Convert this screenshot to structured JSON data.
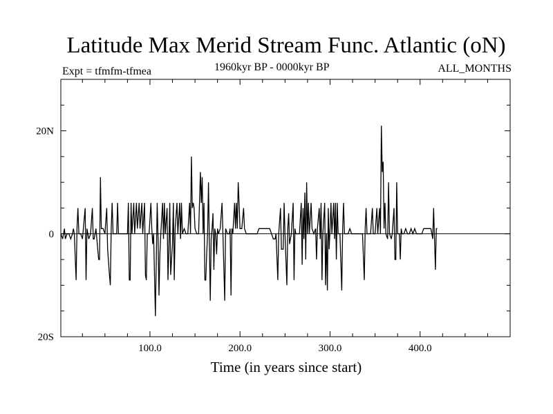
{
  "chart_data": {
    "type": "line",
    "title": "Latitude Max Merid Stream Func. Atlantic (oN)",
    "subtitle_left": "Expt = tfmfm-tfmea",
    "subtitle_center": "1960kyr BP - 0000kyr BP",
    "subtitle_right": "ALL_MONTHS",
    "xlabel": "Time (in years since start)",
    "ylabel": "",
    "xlim": [
      1,
      500
    ],
    "ylim": [
      -20,
      30
    ],
    "x_ticks": [
      100,
      200,
      300,
      400
    ],
    "x_tick_labels": [
      "100.0",
      "200.0",
      "300.0",
      "400.0"
    ],
    "y_ticks": [
      -20,
      0,
      20
    ],
    "y_tick_labels": [
      "20S",
      "0",
      "20N"
    ],
    "grid": false,
    "zero_line": true,
    "line_color": "#000000",
    "series": [
      {
        "values": [
          [
            1,
            0
          ],
          [
            3,
            -1
          ],
          [
            5,
            1
          ],
          [
            6,
            -1
          ],
          [
            8,
            0
          ],
          [
            10,
            0
          ],
          [
            12,
            -1
          ],
          [
            14,
            0
          ],
          [
            15,
            1
          ],
          [
            16,
            0
          ],
          [
            18,
            -9
          ],
          [
            19,
            1
          ],
          [
            20,
            5
          ],
          [
            21,
            0
          ],
          [
            23,
            0
          ],
          [
            25,
            -1
          ],
          [
            26,
            1
          ],
          [
            28,
            5
          ],
          [
            29,
            -9
          ],
          [
            30,
            1
          ],
          [
            32,
            -1
          ],
          [
            34,
            0
          ],
          [
            36,
            5
          ],
          [
            37,
            -1
          ],
          [
            38,
            -1
          ],
          [
            40,
            1
          ],
          [
            41,
            -1
          ],
          [
            43,
            -5
          ],
          [
            44,
            -5
          ],
          [
            45,
            11
          ],
          [
            46,
            1
          ],
          [
            48,
            1
          ],
          [
            50,
            0
          ],
          [
            52,
            5
          ],
          [
            53,
            -3
          ],
          [
            55,
            -8
          ],
          [
            56,
            -10
          ],
          [
            57,
            1
          ],
          [
            58,
            6
          ],
          [
            59,
            0
          ],
          [
            61,
            0
          ],
          [
            63,
            0
          ],
          [
            64,
            6
          ],
          [
            65,
            0
          ],
          [
            67,
            0
          ],
          [
            69,
            0
          ],
          [
            71,
            0
          ],
          [
            73,
            0
          ],
          [
            75,
            0
          ],
          [
            76,
            6
          ],
          [
            77,
            -9
          ],
          [
            78,
            -9
          ],
          [
            79,
            6
          ],
          [
            80,
            0
          ],
          [
            82,
            6
          ],
          [
            83,
            0
          ],
          [
            85,
            6
          ],
          [
            86,
            1
          ],
          [
            88,
            6
          ],
          [
            89,
            1
          ],
          [
            91,
            6
          ],
          [
            92,
            0
          ],
          [
            94,
            6
          ],
          [
            95,
            -8
          ],
          [
            96,
            -9
          ],
          [
            97,
            0
          ],
          [
            99,
            0
          ],
          [
            101,
            6
          ],
          [
            102,
            1
          ],
          [
            103,
            -2
          ],
          [
            104,
            0
          ],
          [
            106,
            -16
          ],
          [
            107,
            -5
          ],
          [
            108,
            6
          ],
          [
            109,
            -1
          ],
          [
            110,
            -12
          ],
          [
            111,
            -4
          ],
          [
            112,
            0
          ],
          [
            114,
            6
          ],
          [
            115,
            -1
          ],
          [
            116,
            6
          ],
          [
            117,
            0
          ],
          [
            119,
            5
          ],
          [
            120,
            -9
          ],
          [
            121,
            -3
          ],
          [
            122,
            6
          ],
          [
            123,
            -8
          ],
          [
            124,
            -5
          ],
          [
            125,
            -2
          ],
          [
            126,
            6
          ],
          [
            127,
            -9
          ],
          [
            128,
            1
          ],
          [
            130,
            6
          ],
          [
            131,
            0
          ],
          [
            133,
            6
          ],
          [
            134,
            -1
          ],
          [
            135,
            6
          ],
          [
            136,
            0
          ],
          [
            138,
            1
          ],
          [
            140,
            0
          ],
          [
            142,
            0
          ],
          [
            144,
            6
          ],
          [
            145,
            0
          ],
          [
            146,
            15
          ],
          [
            147,
            5
          ],
          [
            148,
            6
          ],
          [
            149,
            5
          ],
          [
            150,
            1
          ],
          [
            152,
            0
          ],
          [
            154,
            0
          ],
          [
            156,
            12
          ],
          [
            157,
            6
          ],
          [
            158,
            11
          ],
          [
            159,
            0
          ],
          [
            160,
            6
          ],
          [
            161,
            -9
          ],
          [
            162,
            -9
          ],
          [
            163,
            -4
          ],
          [
            164,
            0
          ],
          [
            165,
            10
          ],
          [
            166,
            -2
          ],
          [
            167,
            -13
          ],
          [
            168,
            -1
          ],
          [
            169,
            1
          ],
          [
            170,
            4
          ],
          [
            171,
            -7
          ],
          [
            172,
            1
          ],
          [
            173,
            0
          ],
          [
            174,
            -4
          ],
          [
            175,
            1
          ],
          [
            176,
            0
          ],
          [
            178,
            1
          ],
          [
            180,
            6
          ],
          [
            181,
            0
          ],
          [
            183,
            -13
          ],
          [
            184,
            1
          ],
          [
            186,
            0
          ],
          [
            188,
            0
          ],
          [
            189,
            1
          ],
          [
            190,
            -12
          ],
          [
            191,
            1
          ],
          [
            192,
            0
          ],
          [
            194,
            6
          ],
          [
            195,
            1
          ],
          [
            196,
            6
          ],
          [
            197,
            1
          ],
          [
            198,
            10
          ],
          [
            199,
            6
          ],
          [
            200,
            1
          ],
          [
            202,
            1
          ],
          [
            204,
            5
          ],
          [
            205,
            1
          ],
          [
            207,
            0
          ],
          [
            209,
            0
          ],
          [
            211,
            0
          ],
          [
            213,
            0
          ],
          [
            215,
            0
          ],
          [
            217,
            0
          ],
          [
            219,
            0
          ],
          [
            221,
            1
          ],
          [
            223,
            1
          ],
          [
            225,
            1
          ],
          [
            227,
            1
          ],
          [
            229,
            1
          ],
          [
            231,
            1
          ],
          [
            233,
            1
          ],
          [
            235,
            0
          ],
          [
            237,
            -1
          ],
          [
            239,
            -1
          ],
          [
            240,
            0
          ],
          [
            242,
            -9
          ],
          [
            243,
            0
          ],
          [
            245,
            5
          ],
          [
            246,
            -3
          ],
          [
            248,
            -3
          ],
          [
            249,
            6
          ],
          [
            250,
            0
          ],
          [
            252,
            -10
          ],
          [
            253,
            1
          ],
          [
            254,
            4
          ],
          [
            255,
            -2
          ],
          [
            256,
            -1
          ],
          [
            257,
            0
          ],
          [
            259,
            6
          ],
          [
            260,
            -9
          ],
          [
            261,
            1
          ],
          [
            262,
            0
          ],
          [
            264,
            0
          ],
          [
            266,
            0
          ],
          [
            268,
            6
          ],
          [
            269,
            -6
          ],
          [
            270,
            5
          ],
          [
            271,
            -1
          ],
          [
            272,
            8
          ],
          [
            273,
            -5
          ],
          [
            274,
            10
          ],
          [
            275,
            0
          ],
          [
            276,
            6
          ],
          [
            277,
            0
          ],
          [
            279,
            6
          ],
          [
            280,
            1
          ],
          [
            282,
            0
          ],
          [
            284,
            1
          ],
          [
            285,
            -5
          ],
          [
            286,
            1
          ],
          [
            288,
            5
          ],
          [
            289,
            -1
          ],
          [
            290,
            6
          ],
          [
            291,
            -9
          ],
          [
            292,
            0
          ],
          [
            294,
            6
          ],
          [
            295,
            -10
          ],
          [
            296,
            0
          ],
          [
            297,
            -11
          ],
          [
            298,
            5
          ],
          [
            299,
            -3
          ],
          [
            300,
            1
          ],
          [
            301,
            6
          ],
          [
            302,
            0
          ],
          [
            304,
            6
          ],
          [
            305,
            -1
          ],
          [
            306,
            6
          ],
          [
            307,
            -5
          ],
          [
            308,
            6
          ],
          [
            309,
            0
          ],
          [
            311,
            0
          ],
          [
            313,
            -11
          ],
          [
            314,
            1
          ],
          [
            315,
            6
          ],
          [
            316,
            0
          ],
          [
            318,
            0
          ],
          [
            320,
            0
          ],
          [
            322,
            1
          ],
          [
            324,
            0
          ],
          [
            326,
            0
          ],
          [
            328,
            0
          ],
          [
            330,
            0
          ],
          [
            332,
            0
          ],
          [
            334,
            0
          ],
          [
            336,
            0
          ],
          [
            338,
            -9
          ],
          [
            339,
            1
          ],
          [
            340,
            5
          ],
          [
            341,
            0
          ],
          [
            343,
            0
          ],
          [
            345,
            0
          ],
          [
            347,
            5
          ],
          [
            348,
            0
          ],
          [
            350,
            0
          ],
          [
            352,
            5
          ],
          [
            353,
            0
          ],
          [
            355,
            5
          ],
          [
            356,
            0
          ],
          [
            357,
            21
          ],
          [
            358,
            12
          ],
          [
            359,
            14
          ],
          [
            360,
            1
          ],
          [
            361,
            6
          ],
          [
            362,
            0
          ],
          [
            364,
            -1
          ],
          [
            365,
            10
          ],
          [
            366,
            0
          ],
          [
            368,
            -1
          ],
          [
            369,
            0
          ],
          [
            371,
            5
          ],
          [
            372,
            -5
          ],
          [
            373,
            -5
          ],
          [
            374,
            10
          ],
          [
            375,
            0
          ],
          [
            377,
            0
          ],
          [
            378,
            -5
          ],
          [
            379,
            1
          ],
          [
            380,
            0
          ],
          [
            382,
            0
          ],
          [
            384,
            1
          ],
          [
            386,
            0
          ],
          [
            388,
            0
          ],
          [
            390,
            1
          ],
          [
            392,
            0
          ],
          [
            394,
            1
          ],
          [
            396,
            0
          ],
          [
            398,
            0
          ],
          [
            400,
            0
          ],
          [
            402,
            0
          ],
          [
            404,
            1
          ],
          [
            406,
            1
          ],
          [
            408,
            1
          ],
          [
            410,
            1
          ],
          [
            412,
            1
          ],
          [
            414,
            -1
          ],
          [
            415,
            5
          ],
          [
            416,
            -1
          ],
          [
            417,
            -7
          ],
          [
            418,
            1
          ],
          [
            419,
            1
          ]
        ]
      }
    ]
  }
}
